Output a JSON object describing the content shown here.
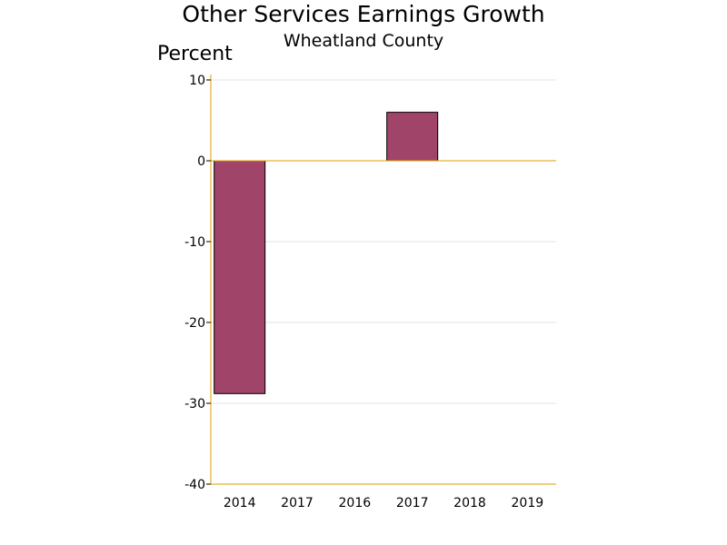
{
  "chart_data": {
    "type": "bar",
    "title": "Other Services Earnings Growth",
    "subtitle": "Wheatland County",
    "ylabel": "Percent",
    "xlabel": "",
    "categories": [
      "2014",
      "2017",
      "2016",
      "2017",
      "2018",
      "2019"
    ],
    "values": [
      -28.8,
      0,
      0,
      6.0,
      0,
      0
    ],
    "ylim": [
      -40,
      10
    ],
    "yticks": [
      10,
      0,
      -10,
      -20,
      -30,
      -40
    ],
    "ytick_labels": [
      "10",
      "0",
      "-10",
      "-20",
      "-30",
      "-40"
    ],
    "grid": true,
    "legend": "none",
    "colors": {
      "bar": "#a0446a",
      "bar_edge": "#000000",
      "axis": "#e0a000",
      "grid": "#e3e3e3"
    }
  }
}
